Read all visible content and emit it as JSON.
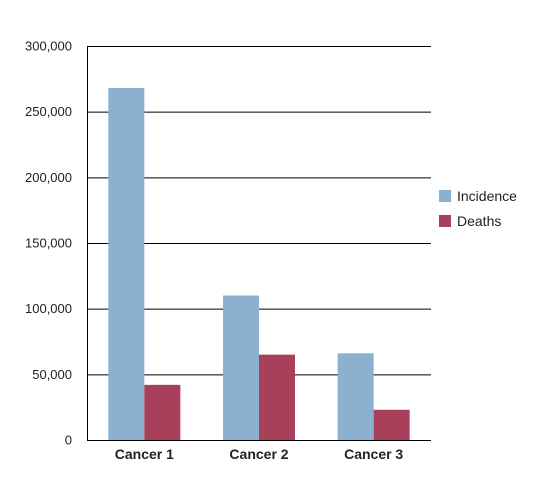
{
  "chart_data": {
    "type": "bar",
    "title": "",
    "xlabel": "",
    "ylabel": "",
    "categories": [
      "Cancer 1",
      "Cancer 2",
      "Cancer 3"
    ],
    "series": [
      {
        "name": "Incidence",
        "color": "#8bb0d0",
        "values": [
          268000,
          110000,
          66000
        ]
      },
      {
        "name": "Deaths",
        "color": "#a8405c",
        "values": [
          42000,
          65000,
          23000
        ]
      }
    ],
    "ylim": [
      0,
      300000
    ],
    "yticks": [
      0,
      50000,
      100000,
      150000,
      200000,
      250000,
      300000
    ],
    "ytick_labels": [
      "0",
      "50,000",
      "100,000",
      "150,000",
      "200,000",
      "250,000",
      "300,000"
    ],
    "grid": true,
    "legend_position": "right"
  }
}
